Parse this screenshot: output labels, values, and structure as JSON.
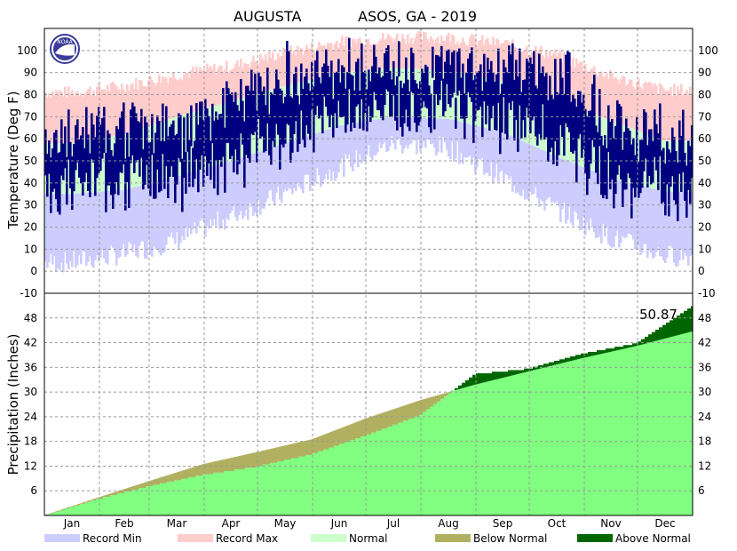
{
  "header": {
    "station": "AUGUSTA",
    "network_title": "ASOS, GA - 2019"
  },
  "logo": {
    "text": "NOAA",
    "color": "#3a3a9a"
  },
  "colors": {
    "record_min": "#ccccff",
    "record_max": "#ffcccc",
    "normal": "#ccffcc",
    "observed": "#000080",
    "precip_normal_fill": "#80ff80",
    "below_normal": "#b0b060",
    "above_normal": "#006600",
    "grid": "#999999"
  },
  "legend": [
    {
      "label": "Record Min",
      "color": "#ccccff"
    },
    {
      "label": "Record Max",
      "color": "#ffcccc"
    },
    {
      "label": "Normal",
      "color": "#ccffcc"
    },
    {
      "label": "Below Normal",
      "color": "#b0b060"
    },
    {
      "label": "Above Normal",
      "color": "#006600"
    }
  ],
  "precip_total_label": "50.87",
  "chart_data": [
    {
      "type": "area",
      "ylabel": "Temperature (Deg F)",
      "ylim": [
        -10,
        110
      ],
      "yticks": [
        -10,
        0,
        10,
        20,
        30,
        40,
        50,
        60,
        70,
        80,
        90,
        100
      ],
      "months": [
        "Jan",
        "Feb",
        "Mar",
        "Apr",
        "May",
        "Jun",
        "Jul",
        "Aug",
        "Sep",
        "Oct",
        "Nov",
        "Dec"
      ],
      "grid": true,
      "series": [
        {
          "name": "Record Max",
          "monthly_values": [
            81,
            84,
            89,
            93,
            99,
            104,
            106,
            106,
            103,
            98,
            88,
            82
          ]
        },
        {
          "name": "Record Min",
          "monthly_values": [
            4,
            8,
            14,
            25,
            35,
            47,
            58,
            56,
            42,
            28,
            15,
            7
          ]
        },
        {
          "name": "Normal",
          "note_hi": [
            58,
            62,
            70,
            77,
            84,
            90,
            92,
            91,
            86,
            77,
            68,
            59
          ],
          "note_lo": [
            35,
            37,
            43,
            50,
            58,
            66,
            70,
            69,
            63,
            52,
            42,
            36
          ]
        },
        {
          "name": "Observed",
          "monthly_hi": [
            62,
            68,
            66,
            78,
            92,
            94,
            95,
            94,
            94,
            92,
            70,
            64
          ],
          "monthly_lo": [
            35,
            40,
            38,
            46,
            60,
            68,
            72,
            72,
            66,
            58,
            38,
            36
          ]
        }
      ]
    },
    {
      "type": "area",
      "ylabel": "Precipitation (Inches)",
      "ylim": [
        0,
        54
      ],
      "yticks": [
        6,
        12,
        18,
        24,
        30,
        36,
        42,
        48
      ],
      "months": [
        "Jan",
        "Feb",
        "Mar",
        "Apr",
        "May",
        "Jun",
        "Jul",
        "Aug",
        "Sep",
        "Oct",
        "Nov",
        "Dec"
      ],
      "grid": true,
      "series": [
        {
          "name": "Normal",
          "cumulative_month_end": [
            4.4,
            8.3,
            12.5,
            15.4,
            18.5,
            23.5,
            28.0,
            31.8,
            35.0,
            38.3,
            41.2,
            44.7
          ]
        },
        {
          "name": "Observed",
          "cumulative_month_end": [
            4.2,
            7.2,
            10.0,
            12.0,
            15.0,
            19.5,
            24.5,
            34.5,
            35.8,
            39.5,
            42.0,
            50.87
          ]
        }
      ]
    }
  ]
}
